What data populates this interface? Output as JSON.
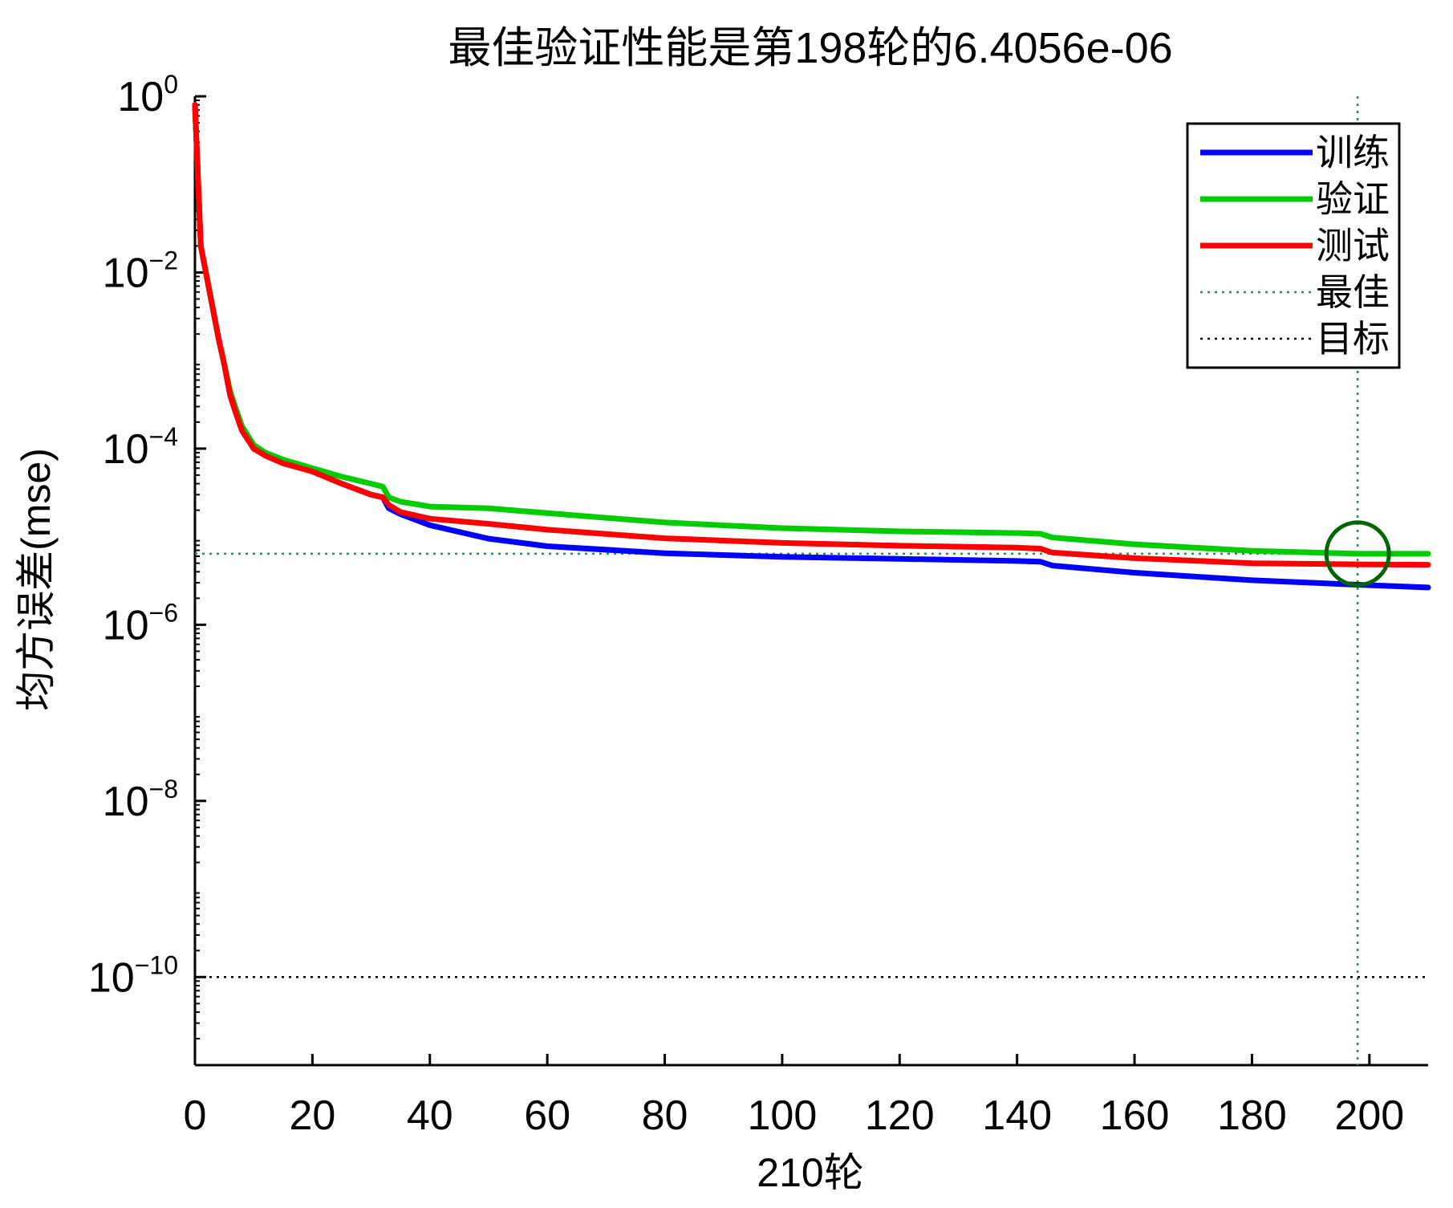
{
  "chart_data": {
    "type": "line",
    "title": "最佳验证性能是第198轮的6.4056e-06",
    "xlabel": "210轮",
    "ylabel": "均方误差(mse)",
    "x_scale": "linear",
    "y_scale": "log",
    "xlim": [
      0,
      210
    ],
    "ylim": [
      1e-11,
      1
    ],
    "x_ticks": [
      0,
      20,
      40,
      60,
      80,
      100,
      120,
      140,
      160,
      180,
      200
    ],
    "x_tick_labels": [
      "0",
      "20",
      "40",
      "60",
      "80",
      "100",
      "120",
      "140",
      "160",
      "180",
      "200"
    ],
    "y_ticks": [
      {
        "value": 1,
        "base": "10",
        "exp": "0"
      },
      {
        "value": 0.01,
        "base": "10",
        "exp": "−2"
      },
      {
        "value": 0.0001,
        "base": "10",
        "exp": "−4"
      },
      {
        "value": 1e-06,
        "base": "10",
        "exp": "−6"
      },
      {
        "value": 1e-08,
        "base": "10",
        "exp": "−8"
      },
      {
        "value": 1e-10,
        "base": "10",
        "exp": "−10"
      }
    ],
    "grid": false,
    "legend_position": "top-right",
    "series": [
      {
        "name": "训练",
        "color": "#0000ff",
        "style": "solid",
        "x": [
          0,
          1,
          2,
          3,
          4,
          5,
          6,
          7,
          8,
          10,
          12,
          15,
          20,
          25,
          30,
          32,
          33,
          35,
          40,
          50,
          60,
          80,
          100,
          120,
          140,
          144,
          146,
          160,
          180,
          198,
          210
        ],
        "y": [
          0.8,
          0.02,
          0.009,
          0.004,
          0.0018,
          0.0009,
          0.0004,
          0.00025,
          0.00016,
          0.0001,
          8.5e-05,
          7e-05,
          5.5e-05,
          4e-05,
          3e-05,
          2.8e-05,
          2.1e-05,
          1.8e-05,
          1.35e-05,
          9.5e-06,
          7.8e-06,
          6.5e-06,
          5.9e-06,
          5.6e-06,
          5.3e-06,
          5.2e-06,
          4.7e-06,
          3.9e-06,
          3.2e-06,
          2.85e-06,
          2.65e-06
        ]
      },
      {
        "name": "验证",
        "color": "#00cc00",
        "style": "solid",
        "x": [
          0,
          1,
          2,
          3,
          4,
          5,
          6,
          7,
          8,
          10,
          12,
          15,
          20,
          25,
          30,
          32,
          33,
          35,
          40,
          50,
          60,
          80,
          100,
          120,
          140,
          144,
          146,
          160,
          180,
          198,
          210
        ],
        "y": [
          0.8,
          0.02,
          0.009,
          0.004,
          0.0018,
          0.0009,
          0.00045,
          0.00028,
          0.00018,
          0.00011,
          9e-05,
          7.5e-05,
          6e-05,
          4.8e-05,
          4e-05,
          3.7e-05,
          2.8e-05,
          2.5e-05,
          2.2e-05,
          2.1e-05,
          1.85e-05,
          1.45e-05,
          1.25e-05,
          1.15e-05,
          1.1e-05,
          1.08e-05,
          9.8e-06,
          8.2e-06,
          6.9e-06,
          6.4056e-06,
          6.4e-06
        ]
      },
      {
        "name": "测试",
        "color": "#ff0000",
        "style": "solid",
        "x": [
          0,
          1,
          2,
          3,
          4,
          5,
          6,
          7,
          8,
          10,
          12,
          15,
          20,
          25,
          30,
          32,
          33,
          35,
          40,
          50,
          60,
          80,
          100,
          120,
          140,
          144,
          146,
          160,
          180,
          198,
          210
        ],
        "y": [
          0.8,
          0.02,
          0.009,
          0.004,
          0.0018,
          0.0009,
          0.0004,
          0.00025,
          0.00016,
          0.0001,
          8.3e-05,
          6.8e-05,
          5.5e-05,
          4e-05,
          3e-05,
          2.8e-05,
          2.3e-05,
          1.9e-05,
          1.6e-05,
          1.4e-05,
          1.2e-05,
          9.6e-06,
          8.5e-06,
          7.9e-06,
          7.5e-06,
          7.3e-06,
          6.6e-06,
          5.7e-06,
          5e-06,
          4.85e-06,
          4.8e-06
        ]
      },
      {
        "name": "最佳",
        "color": "#2e8b57",
        "style": "dotted",
        "x": [
          198
        ],
        "y": [
          6.4056e-06
        ]
      },
      {
        "name": "目标",
        "color": "#000000",
        "style": "dotted",
        "x": [
          0,
          210
        ],
        "y": [
          1e-10,
          1e-10
        ]
      }
    ],
    "best_point": {
      "x": 198,
      "y": 6.4056e-06,
      "marker": "circle",
      "color": "#006400"
    }
  }
}
